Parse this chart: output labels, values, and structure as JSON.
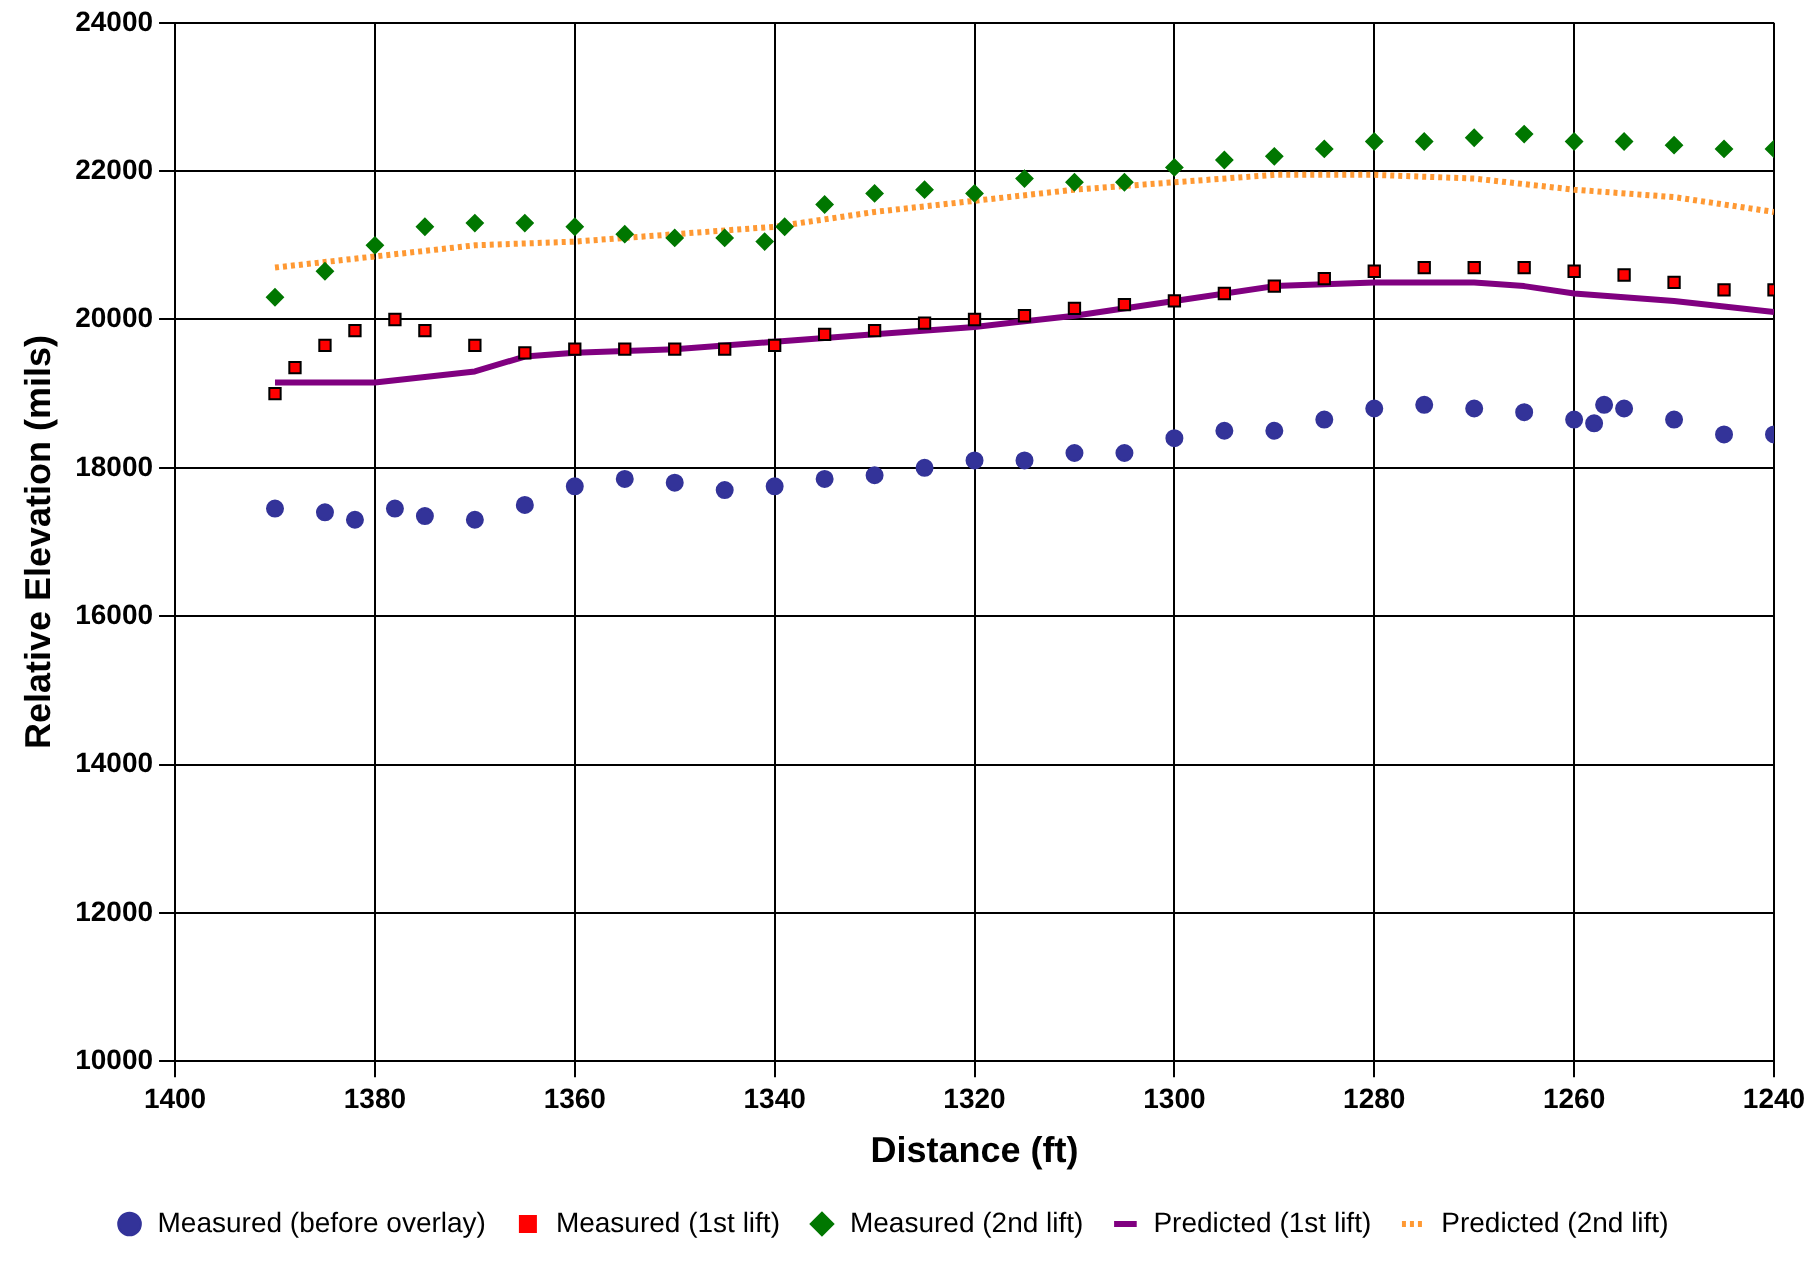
{
  "chart_data": {
    "type": "scatter",
    "xlabel": "Distance (ft)",
    "ylabel": "Relative Elevation (mils)",
    "xlim": [
      1400,
      1240
    ],
    "xticks": [
      1400,
      1380,
      1360,
      1340,
      1320,
      1300,
      1280,
      1260,
      1240
    ],
    "ylim": [
      10000,
      24000
    ],
    "yticks": [
      10000,
      12000,
      14000,
      16000,
      18000,
      20000,
      22000,
      24000
    ],
    "grid": true,
    "legend": "bottom",
    "series": [
      {
        "name": "Measured (before overlay)",
        "type": "scatter",
        "marker": "circle",
        "color": "#333399",
        "x": [
          1390,
          1385,
          1382,
          1378,
          1375,
          1370,
          1365,
          1360,
          1355,
          1350,
          1345,
          1340,
          1335,
          1330,
          1325,
          1320,
          1315,
          1310,
          1305,
          1300,
          1295,
          1290,
          1285,
          1280,
          1275,
          1270,
          1265,
          1260,
          1258,
          1257,
          1255,
          1250,
          1245,
          1240
        ],
        "values": [
          17450,
          17400,
          17300,
          17450,
          17350,
          17300,
          17500,
          17750,
          17850,
          17800,
          17700,
          17750,
          17850,
          17900,
          18000,
          18100,
          18100,
          18200,
          18200,
          18400,
          18500,
          18500,
          18650,
          18800,
          18850,
          18800,
          18750,
          18650,
          18600,
          18850,
          18800,
          18650,
          18450,
          18450
        ]
      },
      {
        "name": "Measured (1st lift)",
        "type": "scatter",
        "marker": "square",
        "color": "#ff0000",
        "x": [
          1390,
          1388,
          1385,
          1382,
          1378,
          1375,
          1370,
          1365,
          1360,
          1355,
          1350,
          1345,
          1340,
          1335,
          1330,
          1325,
          1320,
          1315,
          1310,
          1305,
          1300,
          1295,
          1290,
          1285,
          1280,
          1275,
          1270,
          1265,
          1260,
          1255,
          1250,
          1245,
          1240
        ],
        "values": [
          19000,
          19350,
          19650,
          19850,
          20000,
          19850,
          19650,
          19550,
          19600,
          19600,
          19600,
          19600,
          19650,
          19800,
          19850,
          19950,
          20000,
          20050,
          20150,
          20200,
          20250,
          20350,
          20450,
          20550,
          20650,
          20700,
          20700,
          20700,
          20650,
          20600,
          20500,
          20400,
          20400
        ]
      },
      {
        "name": "Measured (2nd lift)",
        "type": "scatter",
        "marker": "diamond",
        "color": "#007700",
        "x": [
          1390,
          1385,
          1380,
          1375,
          1370,
          1365,
          1360,
          1355,
          1350,
          1345,
          1341,
          1339,
          1335,
          1330,
          1325,
          1320,
          1315,
          1310,
          1305,
          1300,
          1295,
          1290,
          1285,
          1280,
          1275,
          1270,
          1265,
          1260,
          1255,
          1250,
          1245,
          1240
        ],
        "values": [
          20300,
          20650,
          21000,
          21250,
          21300,
          21300,
          21250,
          21150,
          21100,
          21100,
          21050,
          21250,
          21550,
          21700,
          21750,
          21700,
          21900,
          21850,
          21850,
          22050,
          22150,
          22200,
          22300,
          22400,
          22400,
          22450,
          22500,
          22400,
          22400,
          22350,
          22300,
          22300
        ]
      },
      {
        "name": "Predicted (1st lift)",
        "type": "line",
        "marker": "none",
        "line_style": "solid",
        "color": "#800080",
        "x": [
          1390,
          1380,
          1370,
          1365,
          1360,
          1350,
          1340,
          1330,
          1320,
          1310,
          1300,
          1290,
          1280,
          1270,
          1265,
          1260,
          1250,
          1240
        ],
        "values": [
          19150,
          19150,
          19300,
          19500,
          19550,
          19600,
          19700,
          19800,
          19900,
          20050,
          20250,
          20450,
          20500,
          20500,
          20450,
          20350,
          20250,
          20100
        ]
      },
      {
        "name": "Predicted (2nd lift)",
        "type": "line",
        "marker": "none",
        "line_style": "dotted",
        "color": "#ff9933",
        "x": [
          1390,
          1380,
          1370,
          1360,
          1350,
          1340,
          1330,
          1320,
          1310,
          1300,
          1290,
          1280,
          1270,
          1260,
          1250,
          1240
        ],
        "values": [
          20700,
          20850,
          21000,
          21050,
          21150,
          21250,
          21450,
          21600,
          21750,
          21850,
          21950,
          21950,
          21900,
          21750,
          21650,
          21450
        ]
      }
    ]
  }
}
